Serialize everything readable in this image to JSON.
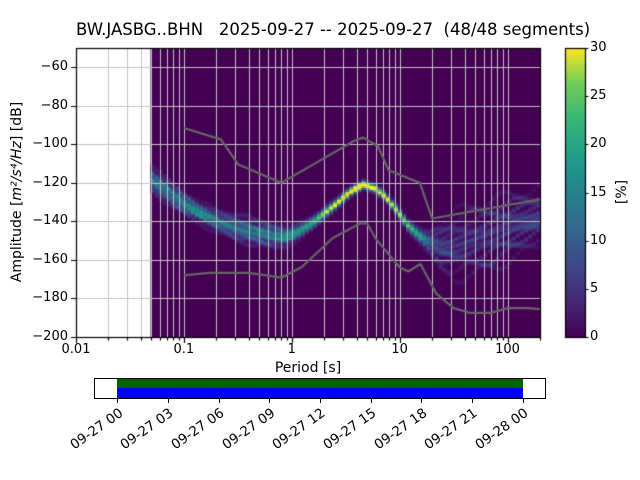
{
  "title": "BW.JASBG..BHN   2025-09-27 -- 2025-09-27  (48/48 segments)",
  "chart_data": {
    "type": "heatmap",
    "title": "BW.JASBG..BHN   2025-09-27 -- 2025-09-27  (48/48 segments)",
    "station": "BW.JASBG..BHN",
    "date_range": "2025-09-27 -- 2025-09-27",
    "segments": "48/48 segments",
    "xlabel": "Period [s]",
    "ylabel_prefix": "Amplitude [",
    "ylabel_math": "m²/s⁴/Hz",
    "ylabel_suffix": "] [dB]",
    "x_axis": {
      "scale": "log",
      "min": 0.01,
      "max": 200,
      "ticks": [
        0.01,
        0.1,
        1,
        10,
        100
      ],
      "tick_labels": [
        "0.01",
        "0.1",
        "1",
        "10",
        "100"
      ],
      "grid": true
    },
    "y_axis": {
      "scale": "linear",
      "min": -200,
      "max": -50,
      "ticks": [
        -60,
        -80,
        -100,
        -120,
        -140,
        -160,
        -180,
        -200
      ],
      "tick_labels": [
        "−60",
        "−80",
        "−100",
        "−120",
        "−140",
        "−160",
        "−180",
        "−200"
      ],
      "grid": true
    },
    "colorbar": {
      "label": "[%]",
      "min": 0,
      "max": 30,
      "ticks": [
        0,
        5,
        10,
        15,
        20,
        25,
        30
      ],
      "tick_labels": [
        "0",
        "5",
        "10",
        "15",
        "20",
        "25",
        "30"
      ],
      "colormap": "viridis",
      "stops": [
        [
          0.0,
          "#440154"
        ],
        [
          0.125,
          "#482878"
        ],
        [
          0.25,
          "#3e4989"
        ],
        [
          0.375,
          "#31688e"
        ],
        [
          0.5,
          "#26828e"
        ],
        [
          0.625,
          "#1f9e89"
        ],
        [
          0.75,
          "#35b779"
        ],
        [
          0.875,
          "#6ece58"
        ],
        [
          1.0,
          "#fde725"
        ]
      ]
    },
    "grid_color": "#c2c2c2",
    "histogram": {
      "background_color": "#440154",
      "period_min": 0.049,
      "period_max": 200,
      "db_bin": 1,
      "ridge_points": [
        [
          0.049,
          -117.5,
          3.4,
          58
        ],
        [
          0.065,
          -123.0,
          3.3,
          55
        ],
        [
          0.09,
          -129.0,
          3.2,
          52
        ],
        [
          0.13,
          -134.5,
          3.0,
          55
        ],
        [
          0.2,
          -139.5,
          3.2,
          58
        ],
        [
          0.3,
          -143.0,
          3.4,
          58
        ],
        [
          0.45,
          -145.5,
          3.5,
          55
        ],
        [
          0.65,
          -147.3,
          3.6,
          55
        ],
        [
          0.9,
          -147.8,
          3.0,
          58
        ],
        [
          1.2,
          -144.5,
          2.2,
          50
        ],
        [
          1.7,
          -139.0,
          1.5,
          52
        ],
        [
          2.5,
          -131.5,
          1.2,
          54
        ],
        [
          3.5,
          -124.5,
          1.1,
          56
        ],
        [
          4.6,
          -120.8,
          1.1,
          56
        ],
        [
          6.0,
          -123.0,
          1.1,
          56
        ],
        [
          7.5,
          -127.5,
          1.1,
          56
        ],
        [
          9.5,
          -134.5,
          1.2,
          54
        ],
        [
          12.0,
          -142.0,
          1.4,
          50
        ],
        [
          15.0,
          -147.0,
          1.7,
          46
        ],
        [
          18.0,
          -150.5,
          2.6,
          40
        ],
        [
          24.0,
          -153.5,
          7.0,
          46
        ],
        [
          32.0,
          -152.5,
          9.5,
          48
        ],
        [
          48.0,
          -149.5,
          10.0,
          48
        ],
        [
          75.0,
          -146.0,
          9.5,
          48
        ],
        [
          120.0,
          -142.0,
          9.0,
          50
        ],
        [
          200.0,
          -137.5,
          8.0,
          52
        ]
      ],
      "mode_offsets": [
        -1.8,
        -1.35,
        -0.95,
        -0.6,
        -0.3,
        0,
        0.3,
        0.62,
        0.98,
        1.38,
        1.8
      ],
      "mode_weights": [
        0.05,
        0.07,
        0.09,
        0.11,
        0.13,
        0.14,
        0.13,
        0.11,
        0.09,
        0.07,
        0.05
      ]
    },
    "noise_models": {
      "color": "#666666",
      "nhnm": [
        [
          0.1,
          -91.5
        ],
        [
          0.22,
          -97.4
        ],
        [
          0.32,
          -110.5
        ],
        [
          0.8,
          -120.0
        ],
        [
          3.8,
          -98.1
        ],
        [
          4.6,
          -96.5
        ],
        [
          6.3,
          -101.0
        ],
        [
          7.9,
          -113.5
        ],
        [
          15.4,
          -120.0
        ],
        [
          20.0,
          -138.5
        ],
        [
          200.0,
          -128.6
        ]
      ],
      "nlnm": [
        [
          0.1,
          -168.0
        ],
        [
          0.17,
          -166.7
        ],
        [
          0.4,
          -166.7
        ],
        [
          0.8,
          -169.2
        ],
        [
          1.24,
          -163.7
        ],
        [
          2.4,
          -148.6
        ],
        [
          4.3,
          -141.1
        ],
        [
          5.0,
          -141.1
        ],
        [
          6.0,
          -149.0
        ],
        [
          10.0,
          -163.8
        ],
        [
          12.0,
          -166.0
        ],
        [
          15.6,
          -162.1
        ],
        [
          21.9,
          -177.5
        ],
        [
          31.6,
          -185.0
        ],
        [
          45.0,
          -187.5
        ],
        [
          70.0,
          -187.5
        ],
        [
          101.0,
          -185.0
        ],
        [
          154.0,
          -185.0
        ],
        [
          200.0,
          -185.5
        ]
      ]
    }
  },
  "timeline": {
    "coverage_top_color": "#006400",
    "coverage_bottom_color": "#0000ff",
    "coverage_start_frac": 0.0498,
    "coverage_end_frac": 0.9501,
    "tick_labels": [
      "09-27 00",
      "09-27 03",
      "09-27 06",
      "09-27 09",
      "09-27 12",
      "09-27 15",
      "09-27 18",
      "09-27 21",
      "09-28 00"
    ]
  }
}
